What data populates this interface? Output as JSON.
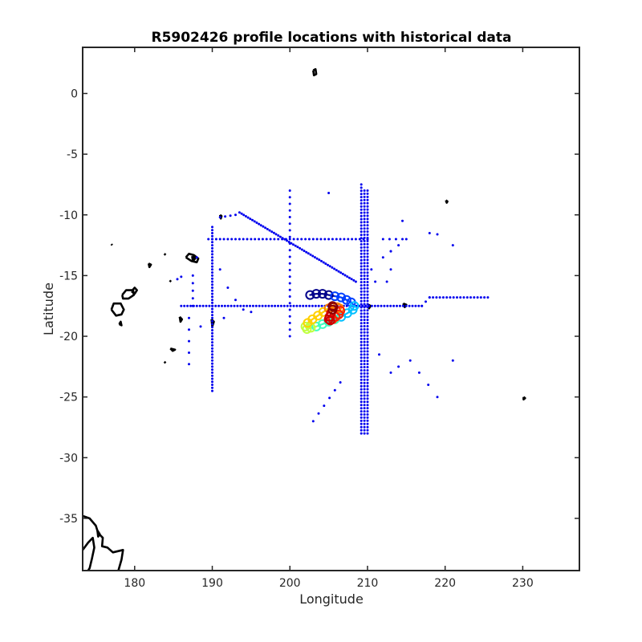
{
  "chart_data": {
    "type": "scatter",
    "title": "R5902426 profile locations with historical data",
    "xlabel": "Longitude",
    "ylabel": "Latitude",
    "xlim": [
      173.3,
      237.3
    ],
    "ylim": [
      -39.3,
      3.8
    ],
    "x_ticks": [
      180,
      190,
      200,
      210,
      220,
      230
    ],
    "y_ticks": [
      0,
      -5,
      -10,
      -15,
      -20,
      -25,
      -30,
      -35
    ],
    "grid": false,
    "legend": "none",
    "colors": {
      "historical": "#0000ee",
      "coast": "#000000",
      "profile_track": [
        "#00008b",
        "#0040ff",
        "#00bfff",
        "#40ffbf",
        "#bfff40",
        "#ffd000",
        "#ff8000",
        "#ff2000",
        "#cc0000",
        "#8b0000"
      ]
    },
    "historical_lines": [
      {
        "x0": 190,
        "y0": -11,
        "x1": 190,
        "y1": -24.5,
        "n": 55
      },
      {
        "x0": 200,
        "y0": -8,
        "x1": 200,
        "y1": -20,
        "n": 23
      },
      {
        "x0": 209.2,
        "y0": -7.5,
        "x1": 209.2,
        "y1": -28,
        "n": 80
      },
      {
        "x0": 209.6,
        "y0": -8,
        "x1": 209.6,
        "y1": -28,
        "n": 78
      },
      {
        "x0": 210,
        "y0": -8,
        "x1": 210,
        "y1": -28,
        "n": 78
      },
      {
        "x0": 189.5,
        "y0": -12,
        "x1": 210,
        "y1": -12,
        "n": 42
      },
      {
        "x0": 193.5,
        "y0": -9.8,
        "x1": 208.5,
        "y1": -15.5,
        "n": 55
      },
      {
        "x0": 186,
        "y0": -17.5,
        "x1": 217,
        "y1": -17.5,
        "n": 78
      },
      {
        "x0": 217,
        "y0": -17.5,
        "x1": 218,
        "y1": -16.8,
        "n": 3
      },
      {
        "x0": 218,
        "y0": -16.8,
        "x1": 225.5,
        "y1": -16.8,
        "n": 18
      },
      {
        "x0": 187.5,
        "y0": -15,
        "x1": 187.5,
        "y1": -17.5,
        "n": 5
      },
      {
        "x0": 187,
        "y0": -18.5,
        "x1": 187,
        "y1": -22.3,
        "n": 5
      },
      {
        "x0": 191,
        "y0": -10.2,
        "x1": 193,
        "y1": -10,
        "n": 4
      },
      {
        "x0": 203,
        "y0": -27,
        "x1": 206.5,
        "y1": -23.8,
        "n": 6
      },
      {
        "x0": 213,
        "y0": -23,
        "x1": 214,
        "y1": -22.5,
        "n": 2
      },
      {
        "x0": 215.5,
        "y0": -22,
        "x1": 219,
        "y1": -25,
        "n": 4
      },
      {
        "x0": 212,
        "y0": -12,
        "x1": 214.5,
        "y1": -12,
        "n": 4
      },
      {
        "x0": 213,
        "y0": -13,
        "x1": 215,
        "y1": -12,
        "n": 3
      },
      {
        "x0": 212,
        "y0": -13.5,
        "x1": 213,
        "y1": -13,
        "n": 2
      }
    ],
    "historical_points": [
      [
        186,
        -15.1
      ],
      [
        188,
        -13.5
      ],
      [
        191,
        -14.5
      ],
      [
        192,
        -16
      ],
      [
        193,
        -17
      ],
      [
        194,
        -17.8
      ],
      [
        195,
        -18
      ],
      [
        188.5,
        -19.2
      ],
      [
        191.5,
        -18.5
      ],
      [
        211.5,
        -21.5
      ],
      [
        210.5,
        -14.5
      ],
      [
        211,
        -15.5
      ],
      [
        212.5,
        -15.5
      ],
      [
        214.5,
        -10.5
      ],
      [
        218,
        -11.5
      ],
      [
        219,
        -11.6
      ],
      [
        221,
        -12.5
      ],
      [
        221,
        -22
      ],
      [
        205,
        -8.2
      ],
      [
        213,
        -14.5
      ],
      [
        185.5,
        -15.3
      ]
    ],
    "profile_track": {
      "x": [
        202.6,
        203.4,
        204.2,
        205.0,
        205.8,
        206.6,
        207.3,
        207.9,
        208.3,
        208.1,
        207.4,
        206.6,
        205.8,
        205.0,
        204.2,
        203.4,
        202.7,
        202.2,
        202.0,
        202.3,
        202.9,
        203.6,
        204.3,
        205.0,
        205.6,
        206.1,
        206.4,
        206.5,
        206.3,
        205.9,
        205.5,
        205.2,
        205.0,
        205.1,
        205.3,
        205.5,
        205.6,
        205.5
      ],
      "y": [
        -16.6,
        -16.5,
        -16.5,
        -16.6,
        -16.7,
        -16.8,
        -17.0,
        -17.2,
        -17.5,
        -17.8,
        -18.1,
        -18.4,
        -18.6,
        -18.8,
        -19.0,
        -19.2,
        -19.3,
        -19.4,
        -19.2,
        -18.9,
        -18.6,
        -18.3,
        -18.0,
        -17.7,
        -17.6,
        -17.6,
        -17.7,
        -17.9,
        -18.2,
        -18.4,
        -18.6,
        -18.7,
        -18.6,
        -18.4,
        -18.1,
        -17.8,
        -17.6,
        -17.5
      ]
    },
    "coastlines": [
      [
        [
          203,
          1.9
        ],
        [
          203.3,
          2.0
        ],
        [
          203.4,
          1.6
        ],
        [
          203.1,
          1.5
        ],
        [
          203,
          1.9
        ]
      ],
      [
        [
          220.1,
          -8.8
        ],
        [
          220.3,
          -8.9
        ],
        [
          220.2,
          -9.0
        ],
        [
          220.1,
          -8.8
        ]
      ],
      [
        [
          230.1,
          -25.0
        ],
        [
          230.3,
          -25.1
        ],
        [
          230.1,
          -25.2
        ],
        [
          230.1,
          -25.0
        ]
      ],
      [
        [
          177.0,
          -12.4
        ],
        [
          177.1,
          -12.5
        ]
      ],
      [
        [
          181.8,
          -14.0
        ],
        [
          182.1,
          -14.1
        ],
        [
          181.9,
          -14.3
        ],
        [
          181.8,
          -14.0
        ]
      ],
      [
        [
          183.8,
          -13.2
        ],
        [
          184.0,
          -13.3
        ]
      ],
      [
        [
          184.5,
          -15.4
        ],
        [
          184.7,
          -15.5
        ]
      ],
      [
        [
          186.6,
          -13.5
        ],
        [
          187.0,
          -13.2
        ],
        [
          187.6,
          -13.3
        ],
        [
          188.2,
          -13.6
        ],
        [
          188.0,
          -13.9
        ],
        [
          187.3,
          -13.8
        ],
        [
          186.6,
          -13.5
        ]
      ],
      [
        [
          187.4,
          -13.4
        ],
        [
          187.8,
          -13.6
        ],
        [
          187.5,
          -13.8
        ],
        [
          187.4,
          -13.4
        ]
      ],
      [
        [
          191.0,
          -10.0
        ],
        [
          191.2,
          -10.1
        ],
        [
          191.1,
          -10.3
        ],
        [
          191.0,
          -10.0
        ]
      ],
      [
        [
          178.4,
          -16.6
        ],
        [
          178.9,
          -16.2
        ],
        [
          179.8,
          -16.2
        ],
        [
          179.9,
          -16.6
        ],
        [
          179.2,
          -16.9
        ],
        [
          178.5,
          -16.9
        ],
        [
          178.4,
          -16.6
        ]
      ],
      [
        [
          179.6,
          -16.3
        ],
        [
          180.0,
          -16.0
        ],
        [
          180.3,
          -16.2
        ],
        [
          180.0,
          -16.5
        ],
        [
          179.6,
          -16.3
        ]
      ],
      [
        [
          177.0,
          -17.8
        ],
        [
          177.3,
          -17.3
        ],
        [
          178.2,
          -17.3
        ],
        [
          178.6,
          -17.8
        ],
        [
          178.3,
          -18.2
        ],
        [
          177.6,
          -18.3
        ],
        [
          177.0,
          -17.8
        ]
      ],
      [
        [
          178.0,
          -19.0
        ],
        [
          178.2,
          -18.8
        ],
        [
          178.3,
          -19.1
        ],
        [
          178.0,
          -19.0
        ]
      ],
      [
        [
          185.8,
          -18.4
        ],
        [
          186.1,
          -18.6
        ],
        [
          185.9,
          -18.8
        ],
        [
          185.8,
          -18.4
        ]
      ],
      [
        [
          189.9,
          -18.6
        ],
        [
          190.2,
          -18.8
        ],
        [
          190.0,
          -19.2
        ],
        [
          189.9,
          -18.6
        ]
      ],
      [
        [
          184.6,
          -21.0
        ],
        [
          185.2,
          -21.1
        ],
        [
          184.9,
          -21.2
        ],
        [
          184.6,
          -21.0
        ]
      ],
      [
        [
          183.8,
          -22.1
        ],
        [
          184.0,
          -22.2
        ]
      ],
      [
        [
          214.6,
          -17.3
        ],
        [
          215.0,
          -17.4
        ],
        [
          214.8,
          -17.6
        ],
        [
          214.6,
          -17.3
        ]
      ],
      [
        [
          210.1,
          -17.4
        ],
        [
          210.4,
          -17.5
        ],
        [
          210.2,
          -17.7
        ],
        [
          210.1,
          -17.4
        ]
      ],
      [
        [
          173.3,
          -34.8
        ],
        [
          174.2,
          -35.0
        ],
        [
          175.0,
          -35.6
        ],
        [
          175.3,
          -36.2
        ],
        [
          175.9,
          -36.6
        ],
        [
          175.8,
          -37.3
        ],
        [
          176.5,
          -37.4
        ],
        [
          177.2,
          -37.8
        ],
        [
          178.5,
          -37.6
        ],
        [
          178.3,
          -38.4
        ],
        [
          177.9,
          -39.3
        ]
      ],
      [
        [
          173.3,
          -37.6
        ],
        [
          174.0,
          -37.0
        ],
        [
          174.6,
          -36.6
        ],
        [
          174.8,
          -37.4
        ],
        [
          174.5,
          -38.3
        ],
        [
          174.2,
          -39.1
        ],
        [
          174.0,
          -39.3
        ]
      ],
      [
        [
          175.2,
          -36.0
        ],
        [
          175.5,
          -36.3
        ],
        [
          175.3,
          -36.5
        ],
        [
          175.2,
          -36.0
        ]
      ]
    ]
  }
}
